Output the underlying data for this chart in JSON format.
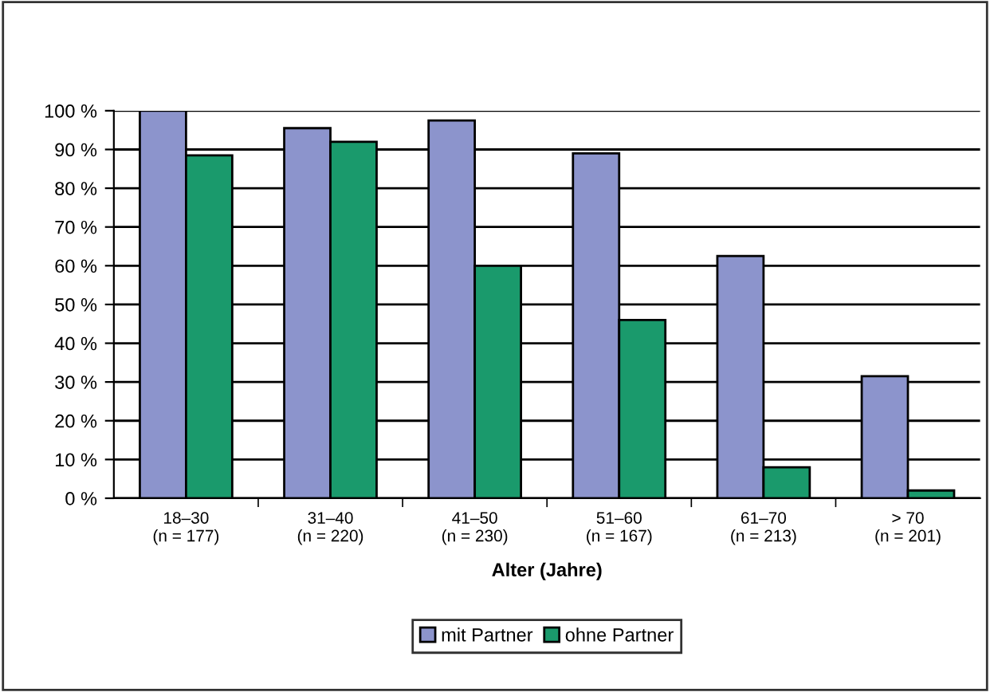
{
  "chart_data": {
    "type": "bar",
    "xlabel": "Alter (Jahre)",
    "categories": [
      "18–30\n(n = 177)",
      "31–40\n(n = 220)",
      "41–50\n(n = 230)",
      "51–60\n(n = 167)",
      "61–70\n(n = 213)",
      "> 70\n(n = 201)"
    ],
    "series": [
      {
        "name": "mit Partner",
        "color": "#8c94cc",
        "values": [
          100,
          95.5,
          97.5,
          89,
          62.5,
          31.5
        ]
      },
      {
        "name": "ohne Partner",
        "color": "#1a9a6c",
        "values": [
          88.5,
          92,
          60,
          46,
          8,
          2
        ]
      }
    ],
    "ylim": [
      0,
      100
    ],
    "yticks": [
      {
        "value": 0,
        "label": "0 %"
      },
      {
        "value": 10,
        "label": "10 %"
      },
      {
        "value": 20,
        "label": "20 %"
      },
      {
        "value": 30,
        "label": "30 %"
      },
      {
        "value": 40,
        "label": "40 %"
      },
      {
        "value": 50,
        "label": "50 %"
      },
      {
        "value": 60,
        "label": "60 %"
      },
      {
        "value": 70,
        "label": "70 %"
      },
      {
        "value": 80,
        "label": "80 %"
      },
      {
        "value": 90,
        "label": "90 %"
      },
      {
        "value": 100,
        "label": "100 %"
      }
    ],
    "grid": "y",
    "legend": "bottom"
  }
}
